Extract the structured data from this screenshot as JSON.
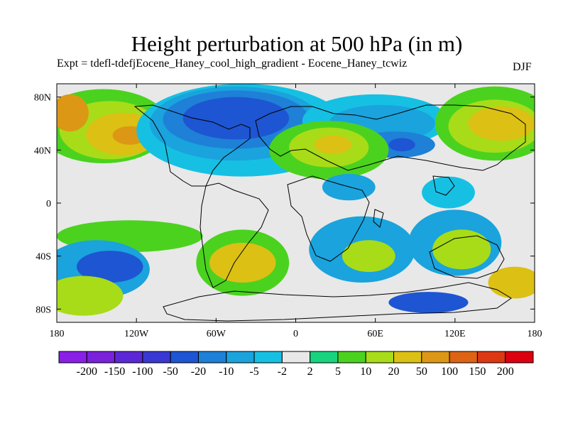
{
  "title": "Height perturbation at 500 hPa (in m)",
  "subtitle": "Expt = tdefl-tdefjEocene_Haney_cool_high_gradient - Eocene_Haney_tcwiz",
  "season": "DJF",
  "y_ticks": [
    "80N",
    "40N",
    "0",
    "40S",
    "80S"
  ],
  "x_ticks": [
    "180",
    "120W",
    "60W",
    "0",
    "60E",
    "120E",
    "180"
  ],
  "colorbar": {
    "colors": [
      "#8a1fe6",
      "#7a21dc",
      "#5c28d6",
      "#3a38d2",
      "#1e55d2",
      "#1e80d7",
      "#1aa3dc",
      "#16c0e3",
      "#e8e8e8",
      "#18d47e",
      "#4bd21e",
      "#a8dc18",
      "#dcc014",
      "#dc9814",
      "#dc6414",
      "#dc3814",
      "#dc0010"
    ],
    "labels": [
      "-200",
      "-150",
      "-100",
      "-50",
      "-20",
      "-10",
      "-5",
      "-2",
      "2",
      "5",
      "10",
      "20",
      "50",
      "100",
      "150",
      "200"
    ]
  },
  "map_fields": {
    "lon_range": [
      -180,
      180
    ],
    "lat_range": [
      -90,
      90
    ],
    "regions": [
      {
        "shape": "ellipse",
        "lon": -145,
        "lat": 58,
        "rlon": 50,
        "rlat": 28,
        "level": 5
      },
      {
        "shape": "ellipse",
        "lon": -140,
        "lat": 55,
        "rlon": 38,
        "rlat": 22,
        "level": 10
      },
      {
        "shape": "ellipse",
        "lon": -130,
        "lat": 52,
        "rlon": 28,
        "rlat": 16,
        "level": 20
      },
      {
        "shape": "ellipse",
        "lon": -125,
        "lat": 51,
        "rlon": 13,
        "rlat": 7,
        "level": 50
      },
      {
        "shape": "ellipse",
        "lon": -170,
        "lat": 68,
        "rlon": 14,
        "rlat": 14,
        "level": 50
      },
      {
        "shape": "ellipse",
        "lon": -40,
        "lat": 55,
        "rlon": 80,
        "rlat": 35,
        "level": -2
      },
      {
        "shape": "ellipse",
        "lon": -45,
        "lat": 60,
        "rlon": 65,
        "rlat": 28,
        "level": -5
      },
      {
        "shape": "ellipse",
        "lon": -45,
        "lat": 63,
        "rlon": 55,
        "rlat": 22,
        "level": -10
      },
      {
        "shape": "ellipse",
        "lon": -45,
        "lat": 64,
        "rlon": 40,
        "rlat": 16,
        "level": -20
      },
      {
        "shape": "ellipse",
        "lon": 60,
        "lat": 62,
        "rlon": 55,
        "rlat": 20,
        "level": -2
      },
      {
        "shape": "ellipse",
        "lon": 65,
        "lat": 60,
        "rlon": 40,
        "rlat": 14,
        "level": -5
      },
      {
        "shape": "ellipse",
        "lon": 75,
        "lat": 44,
        "rlon": 30,
        "rlat": 10,
        "level": -10
      },
      {
        "shape": "ellipse",
        "lon": 80,
        "lat": 44,
        "rlon": 10,
        "rlat": 5,
        "level": -20
      },
      {
        "shape": "ellipse",
        "lon": 25,
        "lat": 40,
        "rlon": 45,
        "rlat": 22,
        "level": 5
      },
      {
        "shape": "ellipse",
        "lon": 25,
        "lat": 42,
        "rlon": 30,
        "rlat": 15,
        "level": 10
      },
      {
        "shape": "ellipse",
        "lon": 28,
        "lat": 44,
        "rlon": 14,
        "rlat": 7,
        "level": 20
      },
      {
        "shape": "ellipse",
        "lon": 150,
        "lat": 60,
        "rlon": 45,
        "rlat": 28,
        "level": 5
      },
      {
        "shape": "ellipse",
        "lon": 150,
        "lat": 58,
        "rlon": 35,
        "rlat": 20,
        "level": 10
      },
      {
        "shape": "ellipse",
        "lon": 155,
        "lat": 60,
        "rlon": 25,
        "rlat": 13,
        "level": 20
      },
      {
        "shape": "ellipse",
        "lon": 40,
        "lat": 12,
        "rlon": 20,
        "rlat": 10,
        "level": -5
      },
      {
        "shape": "ellipse",
        "lon": 115,
        "lat": 8,
        "rlon": 20,
        "rlat": 12,
        "level": -2
      },
      {
        "shape": "ellipse",
        "lon": -125,
        "lat": -25,
        "rlon": 55,
        "rlat": 12,
        "level": 5
      },
      {
        "shape": "ellipse",
        "lon": -150,
        "lat": -50,
        "rlon": 40,
        "rlat": 22,
        "level": -5
      },
      {
        "shape": "ellipse",
        "lon": -140,
        "lat": -48,
        "rlon": 25,
        "rlat": 12,
        "level": -20
      },
      {
        "shape": "ellipse",
        "lon": -160,
        "lat": -70,
        "rlon": 30,
        "rlat": 15,
        "level": 10
      },
      {
        "shape": "ellipse",
        "lon": -40,
        "lat": -45,
        "rlon": 35,
        "rlat": 25,
        "level": 5
      },
      {
        "shape": "ellipse",
        "lon": -40,
        "lat": -45,
        "rlon": 25,
        "rlat": 15,
        "level": 20
      },
      {
        "shape": "ellipse",
        "lon": 50,
        "lat": -35,
        "rlon": 40,
        "rlat": 25,
        "level": -5
      },
      {
        "shape": "ellipse",
        "lon": 55,
        "lat": -40,
        "rlon": 20,
        "rlat": 12,
        "level": 10
      },
      {
        "shape": "ellipse",
        "lon": 120,
        "lat": -30,
        "rlon": 35,
        "rlat": 25,
        "level": -5
      },
      {
        "shape": "ellipse",
        "lon": 125,
        "lat": -35,
        "rlon": 22,
        "rlat": 15,
        "level": 10
      },
      {
        "shape": "ellipse",
        "lon": 100,
        "lat": -75,
        "rlon": 30,
        "rlat": 8,
        "level": -20
      },
      {
        "shape": "ellipse",
        "lon": 165,
        "lat": -60,
        "rlon": 20,
        "rlat": 12,
        "level": 20
      }
    ]
  }
}
